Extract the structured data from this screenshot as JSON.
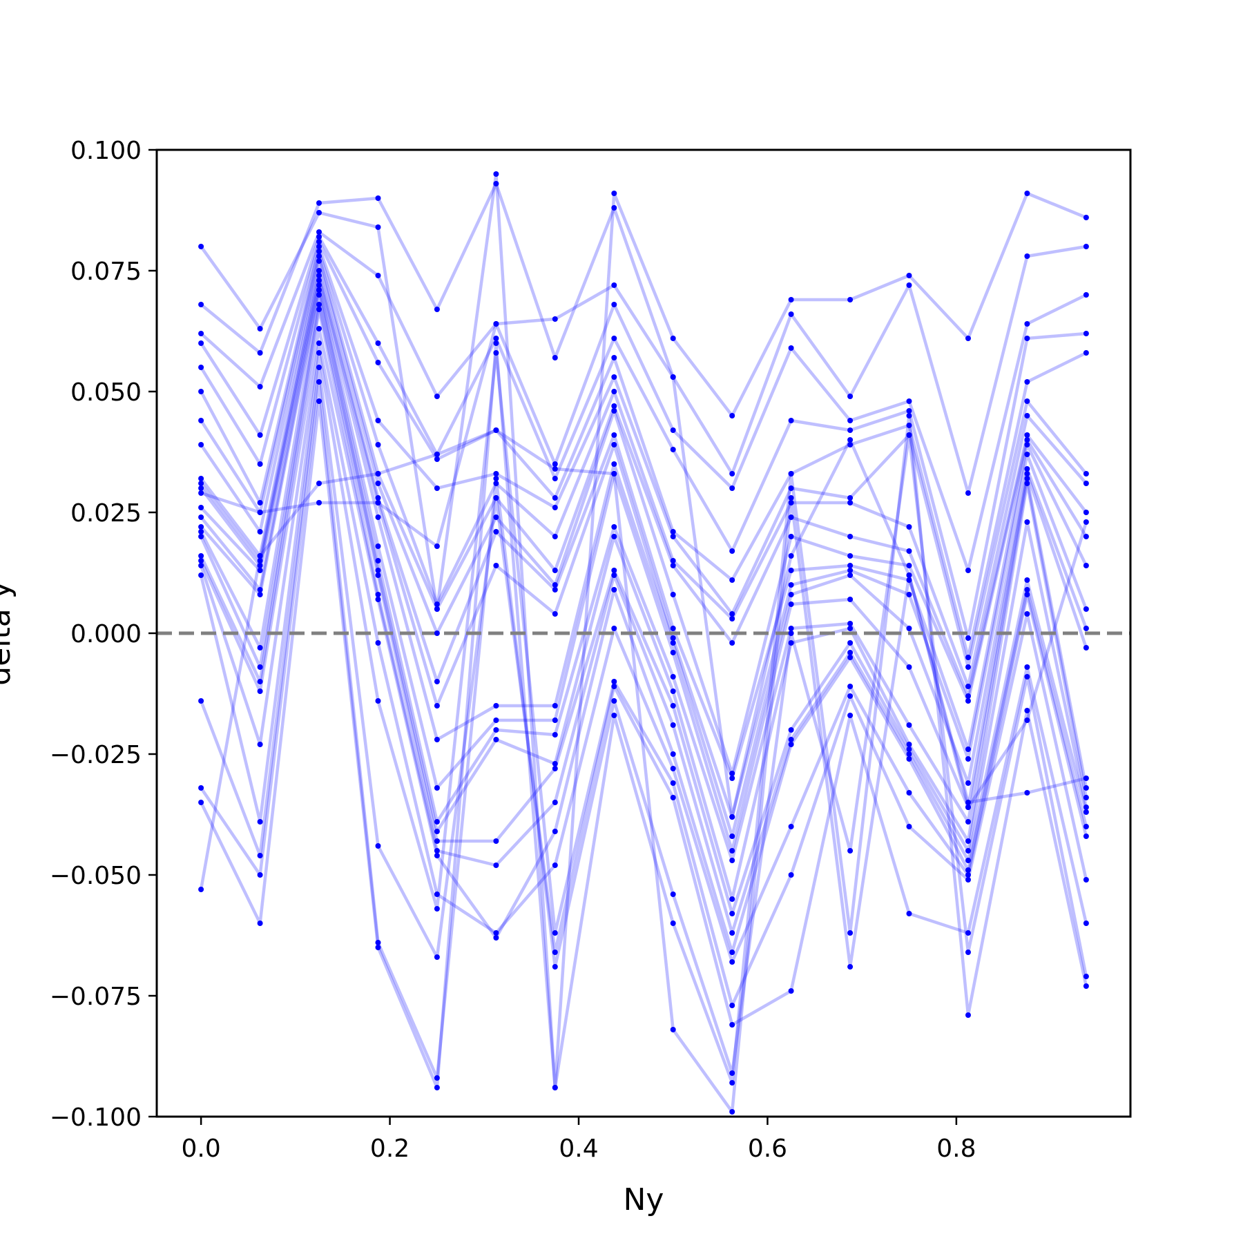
{
  "chart_data": {
    "type": "line",
    "xlabel": "Ny",
    "ylabel": "delta y",
    "xlim": [
      -0.0469,
      0.9844
    ],
    "ylim": [
      -0.1,
      0.1
    ],
    "x_ticks": [
      0.0,
      0.2,
      0.4,
      0.6,
      0.8
    ],
    "x_tick_labels": [
      "0.0",
      "0.2",
      "0.4",
      "0.6",
      "0.8"
    ],
    "y_ticks": [
      0.1,
      0.075,
      0.05,
      0.025,
      0.0,
      -0.025,
      -0.05,
      -0.075,
      -0.1
    ],
    "y_tick_labels": [
      "0.100",
      "0.075",
      "0.050",
      "0.025",
      "0.000",
      "−0.025",
      "−0.050",
      "−0.075",
      "−0.100"
    ],
    "reference_line": {
      "y": 0.0,
      "style": "dashed",
      "color": "#808080"
    },
    "line_color": "#0000ff",
    "line_opacity": 0.25,
    "marker_color": "#0000ff",
    "grid": false,
    "legend": "none",
    "x": [
      0.0,
      0.0625,
      0.125,
      0.1875,
      0.25,
      0.3125,
      0.375,
      0.4375,
      0.5,
      0.5625,
      0.625,
      0.6875,
      0.75,
      0.8125,
      0.875,
      0.9375
    ],
    "series": [
      {
        "values": [
          0.08,
          0.063,
          0.087,
          0.084,
          0.005,
          0.095,
          -0.094,
          0.091,
          0.061,
          0.045,
          0.069,
          0.069,
          0.074,
          0.061,
          0.091,
          0.086
        ]
      },
      {
        "values": [
          0.068,
          0.058,
          0.089,
          0.09,
          0.067,
          0.093,
          0.057,
          0.088,
          0.053,
          0.033,
          0.066,
          0.049,
          0.072,
          0.029,
          0.078,
          0.08
        ]
      },
      {
        "values": [
          0.062,
          0.051,
          0.083,
          0.074,
          0.049,
          0.064,
          0.035,
          0.068,
          0.042,
          0.03,
          0.059,
          0.044,
          0.048,
          0.013,
          0.064,
          0.07
        ]
      },
      {
        "values": [
          0.06,
          0.041,
          0.082,
          0.06,
          0.037,
          0.061,
          0.032,
          0.061,
          0.038,
          0.017,
          0.044,
          0.042,
          0.046,
          -0.001,
          0.061,
          0.062
        ]
      },
      {
        "values": [
          0.055,
          0.035,
          0.081,
          0.056,
          0.036,
          0.042,
          0.028,
          0.057,
          0.021,
          0.011,
          0.033,
          0.039,
          0.043,
          -0.005,
          0.052,
          0.058
        ]
      },
      {
        "values": [
          0.05,
          0.027,
          0.08,
          0.044,
          0.03,
          0.033,
          0.026,
          0.053,
          0.02,
          0.004,
          0.03,
          0.028,
          0.041,
          -0.007,
          0.048,
          0.033
        ]
      },
      {
        "values": [
          0.044,
          0.025,
          0.079,
          0.039,
          0.006,
          0.031,
          0.02,
          0.05,
          0.015,
          0.003,
          0.027,
          0.027,
          0.022,
          -0.011,
          0.045,
          0.031
        ]
      },
      {
        "values": [
          0.039,
          0.021,
          0.078,
          0.033,
          0.005,
          0.028,
          0.013,
          0.047,
          0.014,
          -0.002,
          0.024,
          0.02,
          0.017,
          -0.013,
          0.041,
          0.025
        ]
      },
      {
        "values": [
          0.032,
          0.016,
          0.077,
          0.031,
          0.0,
          0.024,
          0.01,
          0.046,
          0.008,
          -0.029,
          0.02,
          0.016,
          0.014,
          -0.014,
          0.04,
          0.02
        ]
      },
      {
        "values": [
          0.031,
          0.015,
          0.075,
          0.028,
          -0.01,
          0.021,
          0.009,
          0.041,
          0.001,
          -0.03,
          0.013,
          0.014,
          0.011,
          -0.024,
          0.039,
          0.014
        ]
      },
      {
        "values": [
          0.03,
          0.014,
          0.074,
          0.027,
          -0.015,
          0.014,
          0.004,
          0.039,
          -0.001,
          -0.038,
          0.01,
          0.013,
          0.008,
          -0.026,
          0.037,
          0.005
        ]
      },
      {
        "values": [
          0.026,
          0.013,
          0.073,
          0.024,
          -0.022,
          -0.015,
          -0.015,
          0.035,
          -0.002,
          -0.042,
          0.008,
          0.012,
          0.001,
          -0.031,
          0.034,
          0.001
        ]
      },
      {
        "values": [
          0.024,
          0.009,
          0.072,
          0.018,
          -0.032,
          -0.018,
          -0.018,
          0.033,
          -0.004,
          -0.045,
          0.006,
          0.007,
          -0.007,
          -0.036,
          0.033,
          -0.003
        ]
      },
      {
        "values": [
          0.022,
          0.008,
          0.071,
          0.015,
          -0.039,
          -0.02,
          -0.021,
          0.022,
          -0.009,
          -0.047,
          0.001,
          0.002,
          -0.019,
          -0.039,
          0.032,
          -0.032
        ]
      },
      {
        "values": [
          0.021,
          -0.003,
          0.07,
          0.013,
          -0.041,
          -0.022,
          -0.027,
          0.02,
          -0.012,
          -0.055,
          -0.002,
          0.001,
          -0.023,
          -0.043,
          0.031,
          -0.034
        ]
      },
      {
        "values": [
          0.02,
          -0.007,
          0.068,
          0.012,
          -0.043,
          -0.043,
          -0.028,
          0.013,
          -0.015,
          -0.058,
          -0.02,
          -0.002,
          -0.024,
          -0.045,
          0.023,
          -0.036
        ]
      },
      {
        "values": [
          0.016,
          -0.01,
          0.067,
          0.008,
          -0.045,
          -0.048,
          -0.035,
          0.012,
          -0.019,
          -0.062,
          -0.022,
          -0.004,
          -0.025,
          -0.047,
          0.011,
          -0.037
        ]
      },
      {
        "values": [
          0.015,
          -0.012,
          0.063,
          0.007,
          -0.046,
          -0.063,
          -0.041,
          0.009,
          -0.025,
          -0.066,
          -0.023,
          -0.005,
          -0.026,
          -0.049,
          0.009,
          -0.04
        ]
      },
      {
        "values": [
          0.014,
          -0.023,
          0.06,
          -0.002,
          -0.054,
          -0.062,
          -0.048,
          0.001,
          -0.028,
          -0.068,
          -0.04,
          -0.011,
          -0.033,
          -0.05,
          0.008,
          -0.042
        ]
      },
      {
        "values": [
          0.012,
          -0.039,
          0.058,
          -0.014,
          -0.057,
          0.058,
          -0.062,
          -0.01,
          -0.031,
          -0.077,
          -0.05,
          -0.013,
          -0.04,
          -0.051,
          0.004,
          -0.051
        ]
      },
      {
        "values": [
          -0.014,
          -0.046,
          0.055,
          -0.044,
          -0.067,
          0.028,
          -0.066,
          -0.011,
          -0.034,
          -0.081,
          -0.074,
          -0.017,
          -0.058,
          -0.062,
          -0.007,
          -0.06
        ]
      },
      {
        "values": [
          -0.032,
          -0.05,
          0.052,
          -0.064,
          -0.092,
          0.032,
          -0.069,
          -0.014,
          -0.054,
          -0.091,
          0.0,
          -0.045,
          0.041,
          -0.066,
          -0.009,
          -0.071
        ]
      },
      {
        "values": [
          -0.035,
          -0.06,
          0.048,
          -0.065,
          -0.094,
          0.06,
          -0.094,
          -0.017,
          -0.06,
          -0.093,
          0.033,
          -0.062,
          0.045,
          -0.079,
          -0.016,
          -0.073
        ]
      },
      {
        "values": [
          -0.053,
          0.016,
          0.031,
          0.033,
          0.037,
          0.042,
          0.034,
          0.033,
          -0.082,
          -0.099,
          0.028,
          -0.069,
          0.012,
          -0.036,
          -0.018,
          0.023
        ]
      },
      {
        "values": [
          0.029,
          0.025,
          0.027,
          0.027,
          0.018,
          0.064,
          0.065,
          0.072,
          0.053,
          -0.038,
          0.016,
          0.04,
          0.012,
          -0.035,
          -0.033,
          -0.03
        ]
      }
    ]
  }
}
